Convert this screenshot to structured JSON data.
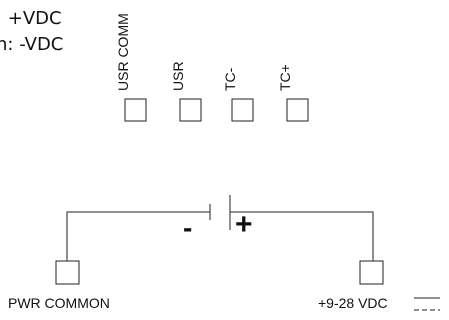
{
  "legend": {
    "line1": ": +VDC",
    "line2": "n: -VDC"
  },
  "terminals": [
    {
      "label": "USR COMM"
    },
    {
      "label": "USR"
    },
    {
      "label": "TC-"
    },
    {
      "label": "TC+"
    }
  ],
  "battery": {
    "negative_symbol": "-",
    "positive_symbol": "+"
  },
  "power_terminals": {
    "left_label": "PWR COMMON",
    "right_label": "+9-28 VDC"
  }
}
